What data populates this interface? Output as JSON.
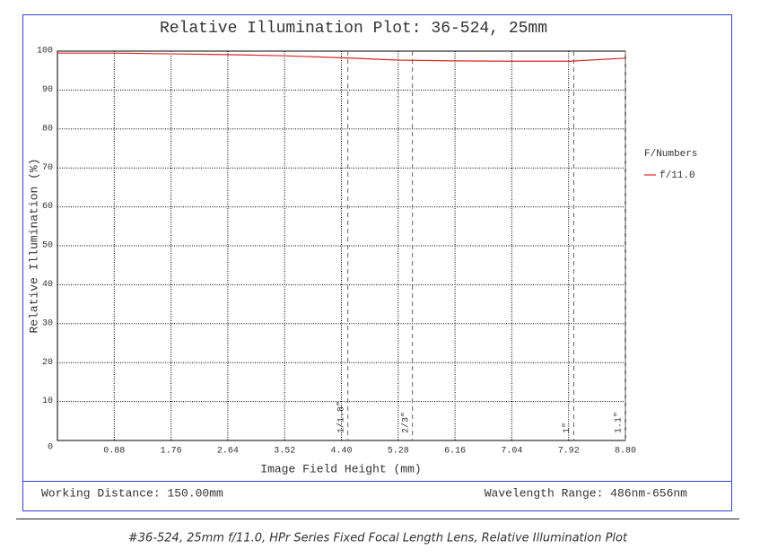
{
  "chart_data": {
    "type": "line",
    "title": "Relative Illumination Plot: 36-524, 25mm",
    "x_label": "Image Field Height (mm)",
    "y_label": "Relative Illumination (%)",
    "x": [
      0,
      0.88,
      1.76,
      2.64,
      3.52,
      4.4,
      5.28,
      6.16,
      7.04,
      7.92,
      8.8
    ],
    "series": [
      {
        "name": "f/11.0",
        "color": "#d62728",
        "values": [
          99.5,
          99.5,
          99.3,
          99.1,
          98.8,
          98.3,
          97.7,
          97.5,
          97.4,
          97.4,
          98.2
        ]
      }
    ],
    "legend_title": "F/Numbers",
    "xlim": [
      0,
      8.8
    ],
    "ylim": [
      0,
      100
    ],
    "xticks": [
      0.88,
      1.76,
      2.64,
      3.52,
      {
        "value": 4.4,
        "label": "4.40"
      },
      5.28,
      6.16,
      7.04,
      7.92,
      {
        "value": 8.8,
        "label": "8.80"
      }
    ],
    "yticks": [
      0,
      10,
      20,
      30,
      40,
      50,
      60,
      70,
      80,
      90,
      100
    ],
    "grid": true,
    "sensor_formats": [
      {
        "value": 4.5,
        "label": "1/1.8\""
      },
      {
        "value": 5.5,
        "label": "2/3\""
      },
      {
        "value": 8.0,
        "label": "1\""
      },
      {
        "value": 8.8,
        "label": "1.1\""
      }
    ]
  },
  "footer": {
    "working_distance": "Working Distance: 150.00mm",
    "wavelength_range": "Wavelength Range: 486nm-656nm"
  },
  "caption": "#36-524, 25mm f/11.0, HPr Series Fixed Focal Length Lens, Relative Illumination Plot"
}
